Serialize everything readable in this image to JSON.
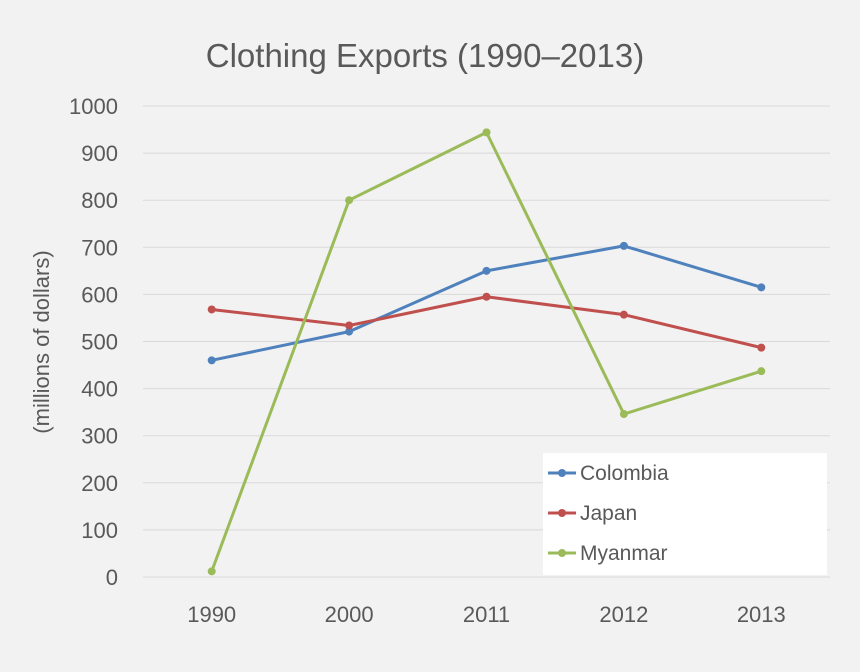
{
  "chart_data": {
    "type": "line",
    "title": "Clothing Exports (1990–2013)",
    "xlabel": "",
    "ylabel": "(millions of dollars)",
    "categories": [
      "1990",
      "2000",
      "2011",
      "2012",
      "2013"
    ],
    "ylim": [
      0,
      1000
    ],
    "yticks": [
      0,
      100,
      200,
      300,
      400,
      500,
      600,
      700,
      800,
      900,
      1000
    ],
    "grid": true,
    "legend_position": "bottom-right",
    "series": [
      {
        "name": "Colombia",
        "color": "#4f81bd",
        "values": [
          460,
          521,
          650,
          703,
          615
        ]
      },
      {
        "name": "Japan",
        "color": "#c0504d",
        "values": [
          568,
          534,
          595,
          557,
          487
        ]
      },
      {
        "name": "Myanmar",
        "color": "#9bbb59",
        "values": [
          12,
          800,
          944,
          346,
          437
        ]
      }
    ]
  },
  "colors": {
    "background": "#f2f2f2",
    "grid": "#d9d9d9",
    "text": "#595959",
    "legend_background": "#ffffff"
  }
}
